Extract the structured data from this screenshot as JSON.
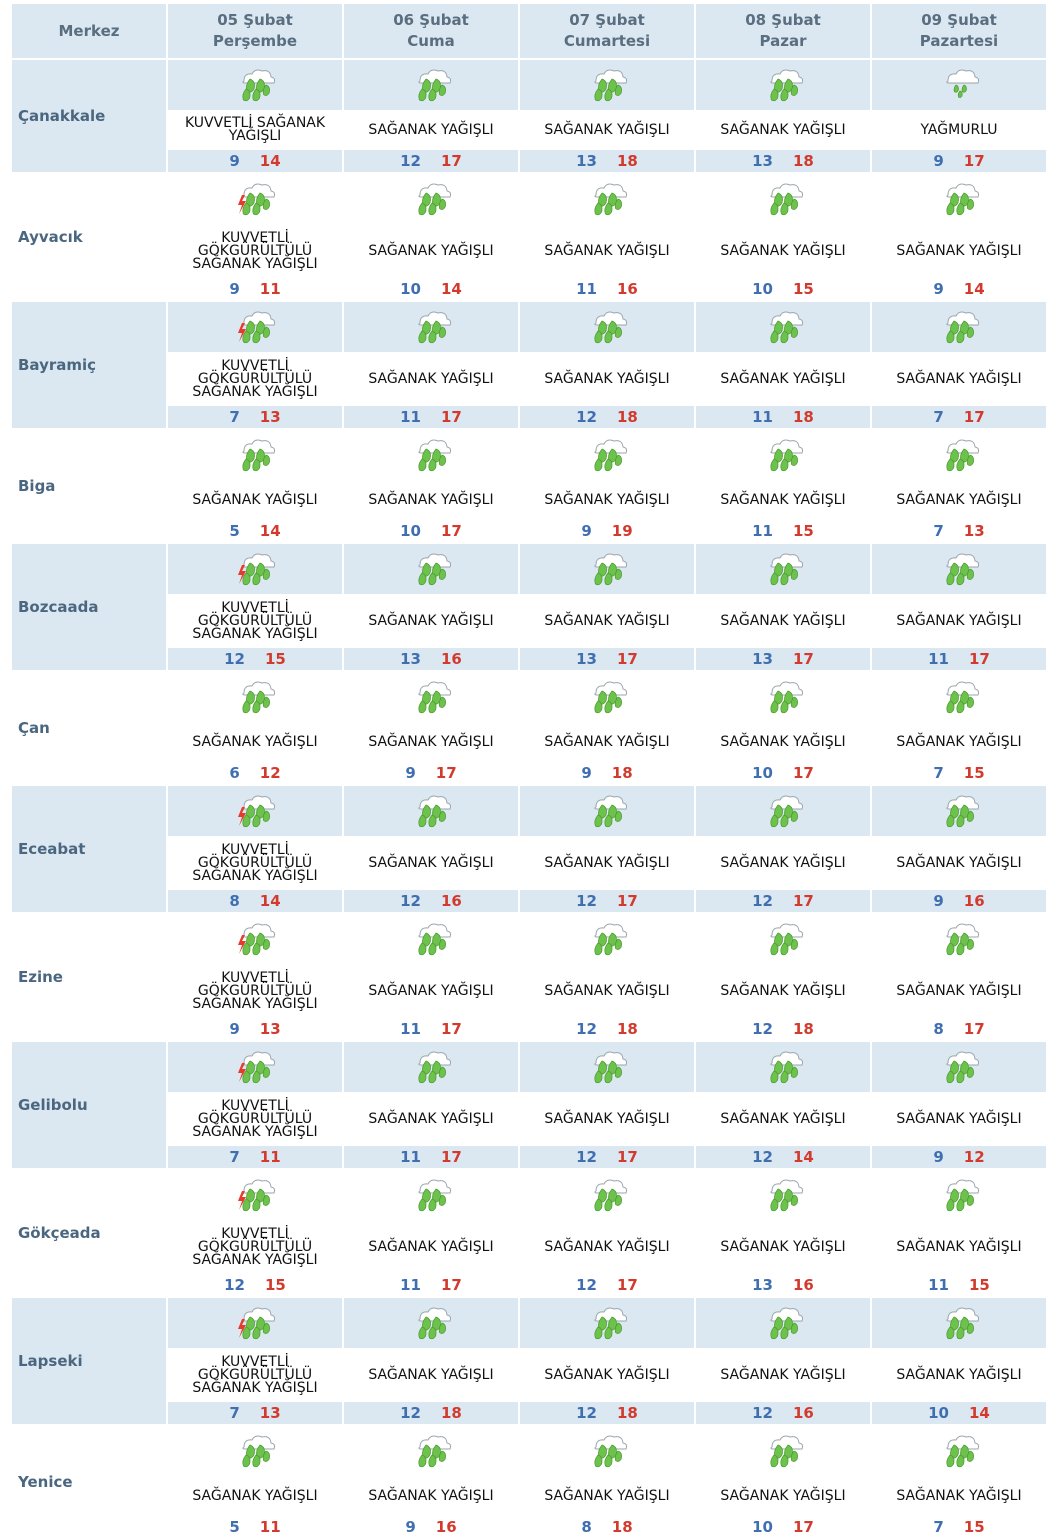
{
  "header": {
    "merkez_label": "Merkez",
    "days": [
      {
        "date": "05 Şubat",
        "weekday": "Perşembe"
      },
      {
        "date": "06 Şubat",
        "weekday": "Cuma"
      },
      {
        "date": "07 Şubat",
        "weekday": "Cumartesi"
      },
      {
        "date": "08 Şubat",
        "weekday": "Pazar"
      },
      {
        "date": "09 Şubat",
        "weekday": "Pazartesi"
      }
    ]
  },
  "icons": {
    "storm": "thunderstorm-rain-icon",
    "showers": "shower-rain-icon",
    "rain": "rain-icon"
  },
  "colors": {
    "min": "#3f6fb0",
    "max": "#d33a2e",
    "shade": "#dbe8f1",
    "leaf": "#6cc24a"
  },
  "rows": [
    {
      "city": "Çanakkale",
      "days": [
        {
          "desc": "KUVVETLİ SAĞANAK YAĞIŞLI",
          "min": "9",
          "max": "14",
          "icon": "showers"
        },
        {
          "desc": "SAĞANAK YAĞIŞLI",
          "min": "12",
          "max": "17",
          "icon": "showers"
        },
        {
          "desc": "SAĞANAK YAĞIŞLI",
          "min": "13",
          "max": "18",
          "icon": "showers"
        },
        {
          "desc": "SAĞANAK YAĞIŞLI",
          "min": "13",
          "max": "18",
          "icon": "showers"
        },
        {
          "desc": "YAĞMURLU",
          "min": "9",
          "max": "17",
          "icon": "rain"
        }
      ]
    },
    {
      "city": "Ayvacık",
      "days": [
        {
          "desc": "KUVVETLİ GÖKGÜRÜLTÜLÜ SAĞANAK YAĞIŞLI",
          "min": "9",
          "max": "11",
          "icon": "storm"
        },
        {
          "desc": "SAĞANAK YAĞIŞLI",
          "min": "10",
          "max": "14",
          "icon": "showers"
        },
        {
          "desc": "SAĞANAK YAĞIŞLI",
          "min": "11",
          "max": "16",
          "icon": "showers"
        },
        {
          "desc": "SAĞANAK YAĞIŞLI",
          "min": "10",
          "max": "15",
          "icon": "showers"
        },
        {
          "desc": "SAĞANAK YAĞIŞLI",
          "min": "9",
          "max": "14",
          "icon": "showers"
        }
      ]
    },
    {
      "city": "Bayramiç",
      "days": [
        {
          "desc": "KUVVETLİ GÖKGÜRÜLTÜLÜ SAĞANAK YAĞIŞLI",
          "min": "7",
          "max": "13",
          "icon": "storm"
        },
        {
          "desc": "SAĞANAK YAĞIŞLI",
          "min": "11",
          "max": "17",
          "icon": "showers"
        },
        {
          "desc": "SAĞANAK YAĞIŞLI",
          "min": "12",
          "max": "18",
          "icon": "showers"
        },
        {
          "desc": "SAĞANAK YAĞIŞLI",
          "min": "11",
          "max": "18",
          "icon": "showers"
        },
        {
          "desc": "SAĞANAK YAĞIŞLI",
          "min": "7",
          "max": "17",
          "icon": "showers"
        }
      ]
    },
    {
      "city": "Biga",
      "days": [
        {
          "desc": "SAĞANAK YAĞIŞLI",
          "min": "5",
          "max": "14",
          "icon": "showers"
        },
        {
          "desc": "SAĞANAK YAĞIŞLI",
          "min": "10",
          "max": "17",
          "icon": "showers"
        },
        {
          "desc": "SAĞANAK YAĞIŞLI",
          "min": "9",
          "max": "19",
          "icon": "showers"
        },
        {
          "desc": "SAĞANAK YAĞIŞLI",
          "min": "11",
          "max": "15",
          "icon": "showers"
        },
        {
          "desc": "SAĞANAK YAĞIŞLI",
          "min": "7",
          "max": "13",
          "icon": "showers"
        }
      ]
    },
    {
      "city": "Bozcaada",
      "days": [
        {
          "desc": "KUVVETLİ GÖKGÜRÜLTÜLÜ SAĞANAK YAĞIŞLI",
          "min": "12",
          "max": "15",
          "icon": "storm"
        },
        {
          "desc": "SAĞANAK YAĞIŞLI",
          "min": "13",
          "max": "16",
          "icon": "showers"
        },
        {
          "desc": "SAĞANAK YAĞIŞLI",
          "min": "13",
          "max": "17",
          "icon": "showers"
        },
        {
          "desc": "SAĞANAK YAĞIŞLI",
          "min": "13",
          "max": "17",
          "icon": "showers"
        },
        {
          "desc": "SAĞANAK YAĞIŞLI",
          "min": "11",
          "max": "17",
          "icon": "showers"
        }
      ]
    },
    {
      "city": "Çan",
      "days": [
        {
          "desc": "SAĞANAK YAĞIŞLI",
          "min": "6",
          "max": "12",
          "icon": "showers"
        },
        {
          "desc": "SAĞANAK YAĞIŞLI",
          "min": "9",
          "max": "17",
          "icon": "showers"
        },
        {
          "desc": "SAĞANAK YAĞIŞLI",
          "min": "9",
          "max": "18",
          "icon": "showers"
        },
        {
          "desc": "SAĞANAK YAĞIŞLI",
          "min": "10",
          "max": "17",
          "icon": "showers"
        },
        {
          "desc": "SAĞANAK YAĞIŞLI",
          "min": "7",
          "max": "15",
          "icon": "showers"
        }
      ]
    },
    {
      "city": "Eceabat",
      "days": [
        {
          "desc": "KUVVETLİ GÖKGÜRÜLTÜLÜ SAĞANAK YAĞIŞLI",
          "min": "8",
          "max": "14",
          "icon": "storm"
        },
        {
          "desc": "SAĞANAK YAĞIŞLI",
          "min": "12",
          "max": "16",
          "icon": "showers"
        },
        {
          "desc": "SAĞANAK YAĞIŞLI",
          "min": "12",
          "max": "17",
          "icon": "showers"
        },
        {
          "desc": "SAĞANAK YAĞIŞLI",
          "min": "12",
          "max": "17",
          "icon": "showers"
        },
        {
          "desc": "SAĞANAK YAĞIŞLI",
          "min": "9",
          "max": "16",
          "icon": "showers"
        }
      ]
    },
    {
      "city": "Ezine",
      "days": [
        {
          "desc": "KUVVETLİ GÖKGÜRÜLTÜLÜ SAĞANAK YAĞIŞLI",
          "min": "9",
          "max": "13",
          "icon": "storm"
        },
        {
          "desc": "SAĞANAK YAĞIŞLI",
          "min": "11",
          "max": "17",
          "icon": "showers"
        },
        {
          "desc": "SAĞANAK YAĞIŞLI",
          "min": "12",
          "max": "18",
          "icon": "showers"
        },
        {
          "desc": "SAĞANAK YAĞIŞLI",
          "min": "12",
          "max": "18",
          "icon": "showers"
        },
        {
          "desc": "SAĞANAK YAĞIŞLI",
          "min": "8",
          "max": "17",
          "icon": "showers"
        }
      ]
    },
    {
      "city": "Gelibolu",
      "days": [
        {
          "desc": "KUVVETLİ GÖKGÜRÜLTÜLÜ SAĞANAK YAĞIŞLI",
          "min": "7",
          "max": "11",
          "icon": "storm"
        },
        {
          "desc": "SAĞANAK YAĞIŞLI",
          "min": "11",
          "max": "17",
          "icon": "showers"
        },
        {
          "desc": "SAĞANAK YAĞIŞLI",
          "min": "12",
          "max": "17",
          "icon": "showers"
        },
        {
          "desc": "SAĞANAK YAĞIŞLI",
          "min": "12",
          "max": "14",
          "icon": "showers"
        },
        {
          "desc": "SAĞANAK YAĞIŞLI",
          "min": "9",
          "max": "12",
          "icon": "showers"
        }
      ]
    },
    {
      "city": "Gökçeada",
      "days": [
        {
          "desc": "KUVVETLİ GÖKGÜRÜLTÜLÜ SAĞANAK YAĞIŞLI",
          "min": "12",
          "max": "15",
          "icon": "storm"
        },
        {
          "desc": "SAĞANAK YAĞIŞLI",
          "min": "11",
          "max": "17",
          "icon": "showers"
        },
        {
          "desc": "SAĞANAK YAĞIŞLI",
          "min": "12",
          "max": "17",
          "icon": "showers"
        },
        {
          "desc": "SAĞANAK YAĞIŞLI",
          "min": "13",
          "max": "16",
          "icon": "showers"
        },
        {
          "desc": "SAĞANAK YAĞIŞLI",
          "min": "11",
          "max": "15",
          "icon": "showers"
        }
      ]
    },
    {
      "city": "Lapseki",
      "days": [
        {
          "desc": "KUVVETLİ GÖKGÜRÜLTÜLÜ SAĞANAK YAĞIŞLI",
          "min": "7",
          "max": "13",
          "icon": "storm"
        },
        {
          "desc": "SAĞANAK YAĞIŞLI",
          "min": "12",
          "max": "18",
          "icon": "showers"
        },
        {
          "desc": "SAĞANAK YAĞIŞLI",
          "min": "12",
          "max": "18",
          "icon": "showers"
        },
        {
          "desc": "SAĞANAK YAĞIŞLI",
          "min": "12",
          "max": "16",
          "icon": "showers"
        },
        {
          "desc": "SAĞANAK YAĞIŞLI",
          "min": "10",
          "max": "14",
          "icon": "showers"
        }
      ]
    },
    {
      "city": "Yenice",
      "days": [
        {
          "desc": "SAĞANAK YAĞIŞLI",
          "min": "5",
          "max": "11",
          "icon": "showers"
        },
        {
          "desc": "SAĞANAK YAĞIŞLI",
          "min": "9",
          "max": "16",
          "icon": "showers"
        },
        {
          "desc": "SAĞANAK YAĞIŞLI",
          "min": "8",
          "max": "18",
          "icon": "showers"
        },
        {
          "desc": "SAĞANAK YAĞIŞLI",
          "min": "10",
          "max": "17",
          "icon": "showers"
        },
        {
          "desc": "SAĞANAK YAĞIŞLI",
          "min": "7",
          "max": "15",
          "icon": "showers"
        }
      ]
    }
  ]
}
